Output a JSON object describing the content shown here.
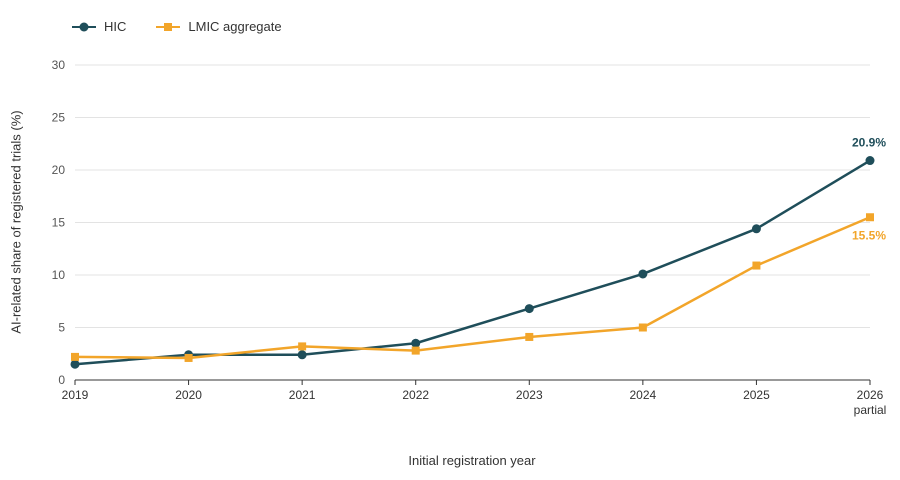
{
  "chart_data": {
    "type": "line",
    "title": "",
    "xlabel": "Initial registration year",
    "ylabel": "AI-related share of registered trials (%)",
    "categories": [
      "2019",
      "2020",
      "2021",
      "2022",
      "2023",
      "2024",
      "2025",
      "2026"
    ],
    "category_sublabels": [
      "",
      "",
      "",
      "",
      "",
      "",
      "",
      "partial"
    ],
    "ylim": [
      0,
      30
    ],
    "yticks": [
      "0",
      "5",
      "10",
      "15",
      "20",
      "25",
      "30"
    ],
    "grid": true,
    "legend_position": "top-left",
    "series": [
      {
        "name": "HIC",
        "color": "#1f4e5a",
        "marker": "circle",
        "values": [
          1.5,
          2.4,
          2.4,
          3.5,
          6.8,
          10.1,
          14.4,
          20.9
        ],
        "end_label": "20.9%"
      },
      {
        "name": "LMIC aggregate",
        "color": "#f2a52a",
        "marker": "square",
        "values": [
          2.2,
          2.1,
          3.2,
          2.8,
          4.1,
          5.0,
          10.9,
          15.5
        ],
        "end_label": "15.5%"
      }
    ]
  }
}
